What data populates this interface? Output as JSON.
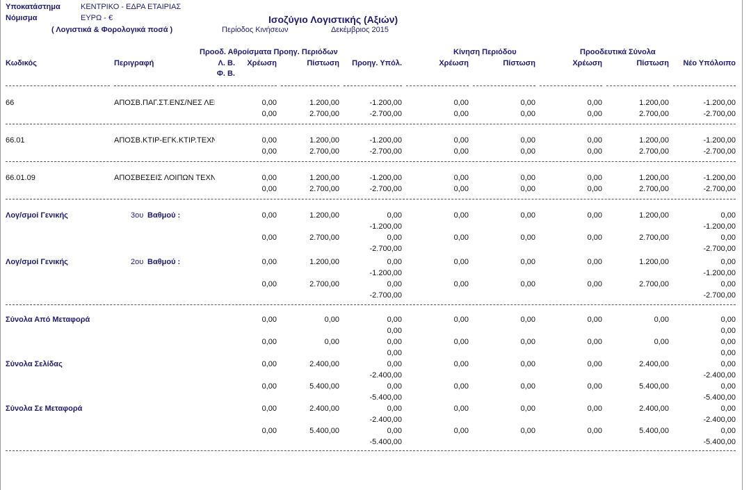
{
  "header": {
    "branch_label": "Υποκατάστημα",
    "branch": "ΚΕΝΤΡΙΚΟ - ΕΔΡΑ ΕΤΑΙΡΙΑΣ",
    "currency_label": "Νόμισμα",
    "currency": "ΕΥΡΩ - €",
    "note": "( Λογιστικά & Φορολογικά ποσά )",
    "title": "Ισοζύγιο Λογιστικής (Αξιών)",
    "period_label": "Περίοδος Κινήσεων",
    "period": "Δεκέμβριος 2015"
  },
  "columns": {
    "groups": [
      "Προοδ. Αθροίσματα Προηγ. Περιόδων",
      "Κίνηση Περιόδου",
      "Προοδευτικά Σύνολα"
    ],
    "code": "Κωδικός",
    "description": "Περιγραφή",
    "lb": "Λ. Β.",
    "fb": "Φ. Β.",
    "amounts": [
      "Χρέωση",
      "Πίστωση",
      "Προηγ. Υπόλ.",
      "Χρέωση",
      "Πίστωση",
      "Χρέωση",
      "Πίστωση",
      "Νέο Υπόλοιπο"
    ]
  },
  "blocks": [
    {
      "code": "66",
      "description": "ΑΠΟΣΒ.ΠΑΓ.ΣΤ.ΕΝΣ/ΝΕΣ ΛΕΓ",
      "lines": [
        [
          "0,00",
          "1.200,00",
          "-1.200,00",
          "0,00",
          "0,00",
          "0,00",
          "1.200,00",
          "-1.200,00"
        ],
        [
          "0,00",
          "2.700,00",
          "-2.700,00",
          "0,00",
          "0,00",
          "0,00",
          "2.700,00",
          "-2.700,00"
        ]
      ]
    },
    {
      "code": "66.01",
      "description": "ΑΠΟΣΒ.ΚΤΙΡ-ΕΓΚ.ΚΤΙΡ.ΤΕΧΝ.Ε",
      "lines": [
        [
          "0,00",
          "1.200,00",
          "-1.200,00",
          "0,00",
          "0,00",
          "0,00",
          "1.200,00",
          "-1.200,00"
        ],
        [
          "0,00",
          "2.700,00",
          "-2.700,00",
          "0,00",
          "0,00",
          "0,00",
          "2.700,00",
          "-2.700,00"
        ]
      ]
    },
    {
      "code": "66.01.09",
      "description": "ΑΠΟΣΒΕΣΕΙΣ ΛΟΙΠΩΝ ΤΕΧΝΙΚ",
      "lines": [
        [
          "0,00",
          "1.200,00",
          "-1.200,00",
          "0,00",
          "0,00",
          "0,00",
          "1.200,00",
          "-1.200,00"
        ],
        [
          "0,00",
          "2.700,00",
          "-2.700,00",
          "0,00",
          "0,00",
          "0,00",
          "2.700,00",
          "-2.700,00"
        ]
      ]
    },
    {
      "label": "Λογ/σμοί Γενικής",
      "grade": "3ου",
      "grade_label": "Βαθμού :",
      "lines": [
        [
          "0,00",
          "1.200,00",
          "0,00",
          "0,00",
          "0,00",
          "0,00",
          "1.200,00",
          "0,00"
        ],
        [
          null,
          null,
          "-1.200,00",
          null,
          null,
          null,
          null,
          "-1.200,00"
        ],
        [
          "0,00",
          "2.700,00",
          "0,00",
          "0,00",
          "0,00",
          "0,00",
          "2.700,00",
          "0,00"
        ],
        [
          null,
          null,
          "-2.700,00",
          null,
          null,
          null,
          null,
          "-2.700,00"
        ]
      ]
    },
    {
      "label": "Λογ/σμοί Γενικής",
      "grade": "2ου",
      "grade_label": "Βαθμού :",
      "lines": [
        [
          "0,00",
          "1.200,00",
          "0,00",
          "0,00",
          "0,00",
          "0,00",
          "1.200,00",
          "0,00"
        ],
        [
          null,
          null,
          "-1.200,00",
          null,
          null,
          null,
          null,
          "-1.200,00"
        ],
        [
          "0,00",
          "2.700,00",
          "0,00",
          "0,00",
          "0,00",
          "0,00",
          "2.700,00",
          "0,00"
        ],
        [
          null,
          null,
          "-2.700,00",
          null,
          null,
          null,
          null,
          "-2.700,00"
        ]
      ]
    },
    {
      "label": "Σύνολα Από Μεταφορά",
      "lines": [
        [
          "0,00",
          "0,00",
          "0,00",
          "0,00",
          "0,00",
          "0,00",
          "0,00",
          "0,00"
        ],
        [
          null,
          null,
          "0,00",
          null,
          null,
          null,
          null,
          "0,00"
        ],
        [
          "0,00",
          "0,00",
          "0,00",
          "0,00",
          "0,00",
          "0,00",
          "0,00",
          "0,00"
        ],
        [
          null,
          null,
          "0,00",
          null,
          null,
          null,
          null,
          "0,00"
        ]
      ]
    },
    {
      "label": "Σύνολα Σελίδας",
      "lines": [
        [
          "0,00",
          "2.400,00",
          "0,00",
          "0,00",
          "0,00",
          "0,00",
          "2.400,00",
          "0,00"
        ],
        [
          null,
          null,
          "-2.400,00",
          null,
          null,
          null,
          null,
          "-2.400,00"
        ],
        [
          "0,00",
          "5.400,00",
          "0,00",
          "0,00",
          "0,00",
          "0,00",
          "5.400,00",
          "0,00"
        ],
        [
          null,
          null,
          "-5.400,00",
          null,
          null,
          null,
          null,
          "-5.400,00"
        ]
      ]
    },
    {
      "label": "Σύνολα Σε Μεταφορά",
      "lines": [
        [
          "0,00",
          "2.400,00",
          "0,00",
          "0,00",
          "0,00",
          "0,00",
          "2.400,00",
          "0,00"
        ],
        [
          null,
          null,
          "-2.400,00",
          null,
          null,
          null,
          null,
          "-2.400,00"
        ],
        [
          "0,00",
          "5.400,00",
          "0,00",
          "0,00",
          "0,00",
          "0,00",
          "5.400,00",
          "0,00"
        ],
        [
          null,
          null,
          "-5.400,00",
          null,
          null,
          null,
          null,
          "-5.400,00"
        ]
      ]
    }
  ]
}
